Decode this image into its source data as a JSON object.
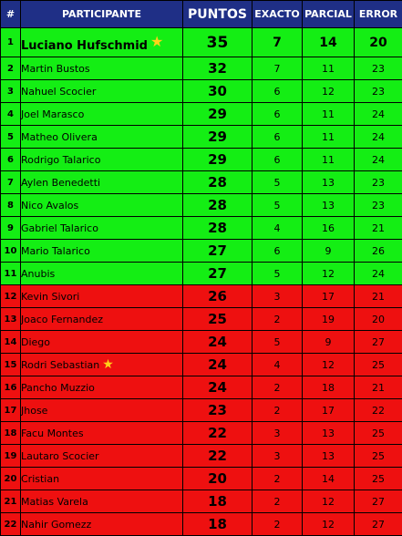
{
  "header": {
    "pos": "#",
    "participant": "PARTICIPANTE",
    "points": "PUNTOS",
    "exact": "EXACTO",
    "partial": "PARCIAL",
    "error": "ERROR"
  },
  "colors": {
    "header": "#1f2f86",
    "green": "#14ee14",
    "red": "#ee1010",
    "star": "#ffd21a"
  },
  "rows": [
    {
      "pos": "1",
      "name": "Luciano Hufschmid",
      "points": "35",
      "exact": "7",
      "partial": "14",
      "error": "20",
      "zone": "green",
      "star": true
    },
    {
      "pos": "2",
      "name": "Martin Bustos",
      "points": "32",
      "exact": "7",
      "partial": "11",
      "error": "23",
      "zone": "green"
    },
    {
      "pos": "3",
      "name": "Nahuel Scocier",
      "points": "30",
      "exact": "6",
      "partial": "12",
      "error": "23",
      "zone": "green"
    },
    {
      "pos": "4",
      "name": "Joel Marasco",
      "points": "29",
      "exact": "6",
      "partial": "11",
      "error": "24",
      "zone": "green"
    },
    {
      "pos": "5",
      "name": "Matheo Olivera",
      "points": "29",
      "exact": "6",
      "partial": "11",
      "error": "24",
      "zone": "green"
    },
    {
      "pos": "6",
      "name": "Rodrigo Talarico",
      "points": "29",
      "exact": "6",
      "partial": "11",
      "error": "24",
      "zone": "green"
    },
    {
      "pos": "7",
      "name": "Aylen Benedetti",
      "points": "28",
      "exact": "5",
      "partial": "13",
      "error": "23",
      "zone": "green"
    },
    {
      "pos": "8",
      "name": "Nico Avalos",
      "points": "28",
      "exact": "5",
      "partial": "13",
      "error": "23",
      "zone": "green"
    },
    {
      "pos": "9",
      "name": "Gabriel Talarico",
      "points": "28",
      "exact": "4",
      "partial": "16",
      "error": "21",
      "zone": "green"
    },
    {
      "pos": "10",
      "name": "Mario Talarico",
      "points": "27",
      "exact": "6",
      "partial": "9",
      "error": "26",
      "zone": "green"
    },
    {
      "pos": "11",
      "name": "Anubis",
      "points": "27",
      "exact": "5",
      "partial": "12",
      "error": "24",
      "zone": "green"
    },
    {
      "pos": "12",
      "name": "Kevin Sivori",
      "points": "26",
      "exact": "3",
      "partial": "17",
      "error": "21",
      "zone": "red"
    },
    {
      "pos": "13",
      "name": "Joaco Fernandez",
      "points": "25",
      "exact": "2",
      "partial": "19",
      "error": "20",
      "zone": "red"
    },
    {
      "pos": "14",
      "name": "Diego",
      "points": "24",
      "exact": "5",
      "partial": "9",
      "error": "27",
      "zone": "red"
    },
    {
      "pos": "15",
      "name": "Rodri Sebastian",
      "points": "24",
      "exact": "4",
      "partial": "12",
      "error": "25",
      "zone": "red",
      "star": true
    },
    {
      "pos": "16",
      "name": "Pancho Muzzio",
      "points": "24",
      "exact": "2",
      "partial": "18",
      "error": "21",
      "zone": "red"
    },
    {
      "pos": "17",
      "name": "Jhose",
      "points": "23",
      "exact": "2",
      "partial": "17",
      "error": "22",
      "zone": "red"
    },
    {
      "pos": "18",
      "name": "Facu Montes",
      "points": "22",
      "exact": "3",
      "partial": "13",
      "error": "25",
      "zone": "red"
    },
    {
      "pos": "19",
      "name": "Lautaro Scocier",
      "points": "22",
      "exact": "3",
      "partial": "13",
      "error": "25",
      "zone": "red"
    },
    {
      "pos": "20",
      "name": "Cristian",
      "points": "20",
      "exact": "2",
      "partial": "14",
      "error": "25",
      "zone": "red"
    },
    {
      "pos": "21",
      "name": "Matias Varela",
      "points": "18",
      "exact": "2",
      "partial": "12",
      "error": "27",
      "zone": "red"
    },
    {
      "pos": "22",
      "name": "Nahir Gomezz",
      "points": "18",
      "exact": "2",
      "partial": "12",
      "error": "27",
      "zone": "red"
    }
  ]
}
